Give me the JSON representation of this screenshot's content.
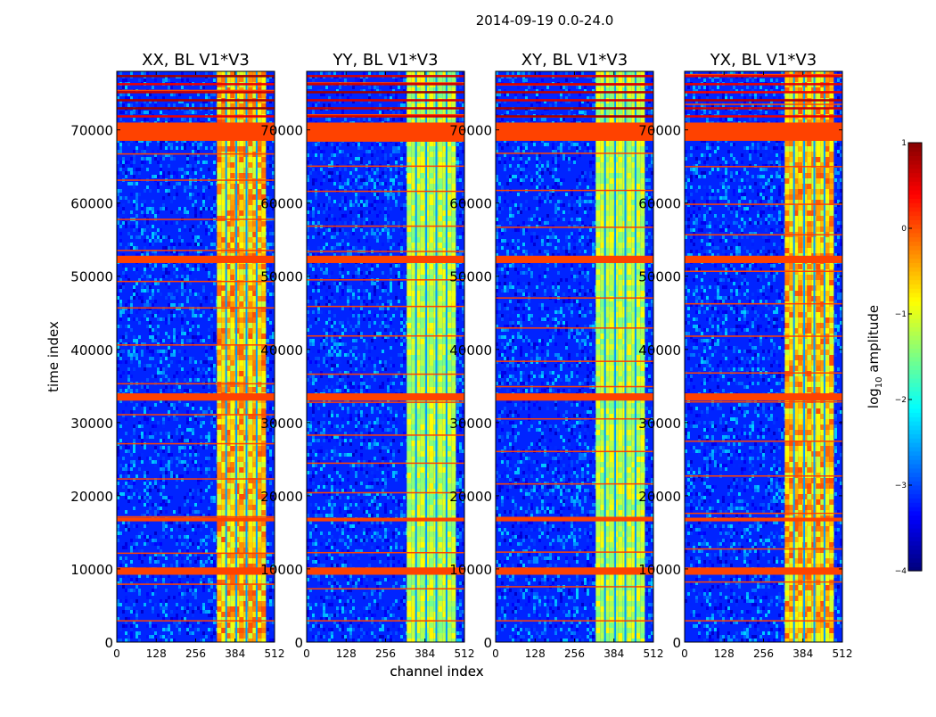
{
  "figure": {
    "suptitle": "2014-09-19 0.0-24.0"
  },
  "chart_data": [
    {
      "type": "heatmap",
      "title": "XX, BL V1*V3",
      "xlabel": "channel index",
      "ylabel": "time index",
      "xlim": [
        0,
        512
      ],
      "ylim": [
        0,
        78000
      ],
      "xticks": [
        0,
        128,
        256,
        384,
        512
      ],
      "yticks": [
        0,
        10000,
        20000,
        30000,
        40000,
        50000,
        60000,
        70000
      ],
      "bright_channel_band": [
        325,
        475
      ],
      "band_log10_amplitude": [
        -1.2,
        0.0
      ],
      "background_log10_amplitude": -3.2,
      "saturated_time_bands": [
        [
          68500,
          71000
        ],
        [
          9200,
          10200
        ],
        [
          16500,
          17000
        ],
        [
          33000,
          34000
        ],
        [
          51800,
          52800
        ]
      ]
    },
    {
      "type": "heatmap",
      "title": "YY, BL V1*V3",
      "xlabel": "channel index",
      "ylabel": "",
      "xlim": [
        0,
        512
      ],
      "ylim": [
        0,
        78000
      ],
      "xticks": [
        0,
        128,
        256,
        384,
        512
      ],
      "yticks": [
        0,
        10000,
        20000,
        30000,
        40000,
        50000,
        60000,
        70000
      ],
      "bright_channel_band": [
        325,
        475
      ],
      "band_log10_amplitude": [
        -1.6,
        -0.8
      ],
      "background_log10_amplitude": -3.2,
      "saturated_time_bands": [
        [
          68500,
          71000
        ],
        [
          9200,
          10200
        ],
        [
          16500,
          17000
        ],
        [
          33000,
          34000
        ],
        [
          51800,
          52800
        ]
      ]
    },
    {
      "type": "heatmap",
      "title": "XY, BL V1*V3",
      "xlabel": "",
      "ylabel": "",
      "xlim": [
        0,
        512
      ],
      "ylim": [
        0,
        78000
      ],
      "xticks": [
        0,
        128,
        256,
        384,
        512
      ],
      "yticks": [
        0,
        10000,
        20000,
        30000,
        40000,
        50000,
        60000,
        70000
      ],
      "bright_channel_band": [
        325,
        475
      ],
      "band_log10_amplitude": [
        -1.6,
        -0.8
      ],
      "background_log10_amplitude": -3.2,
      "saturated_time_bands": [
        [
          68500,
          71000
        ],
        [
          9200,
          10200
        ],
        [
          16500,
          17000
        ],
        [
          33000,
          34000
        ],
        [
          51800,
          52800
        ]
      ]
    },
    {
      "type": "heatmap",
      "title": "YX, BL V1*V3",
      "xlabel": "",
      "ylabel": "",
      "xlim": [
        0,
        512
      ],
      "ylim": [
        0,
        78000
      ],
      "xticks": [
        0,
        128,
        256,
        384,
        512
      ],
      "yticks": [
        0,
        10000,
        20000,
        30000,
        40000,
        50000,
        60000,
        70000
      ],
      "bright_channel_band": [
        325,
        475
      ],
      "band_log10_amplitude": [
        -1.2,
        0.0
      ],
      "background_log10_amplitude": -3.2,
      "saturated_time_bands": [
        [
          68500,
          71000
        ],
        [
          9200,
          10200
        ],
        [
          16500,
          17000
        ],
        [
          33000,
          34000
        ],
        [
          51800,
          52800
        ]
      ]
    }
  ],
  "colorbar": {
    "label": "log10 amplitude",
    "range": [
      -4,
      1
    ],
    "ticks": [
      "1",
      "0",
      "−1",
      "−2",
      "−3",
      "−4"
    ],
    "colormap": "jet"
  }
}
